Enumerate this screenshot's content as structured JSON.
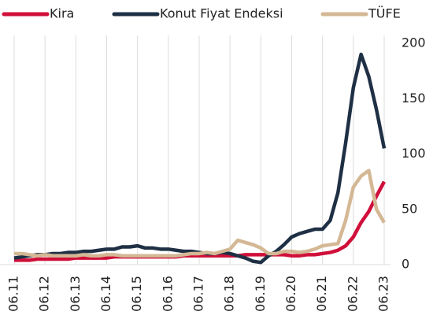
{
  "chart_data": {
    "type": "line",
    "categories": [
      "06.11",
      null,
      null,
      null,
      "06.12",
      null,
      null,
      null,
      "06.13",
      null,
      null,
      null,
      "06.14",
      null,
      null,
      null,
      "06.15",
      null,
      null,
      null,
      "06.16",
      null,
      null,
      null,
      "06.17",
      null,
      null,
      null,
      "06.18",
      null,
      null,
      null,
      "06.19",
      null,
      null,
      null,
      "06.20",
      null,
      null,
      null,
      "06.21",
      null,
      null,
      null,
      "06.22",
      null,
      null,
      null,
      "06.23"
    ],
    "series": [
      {
        "name": "Kira",
        "color": "#d0103a",
        "values": [
          4,
          4,
          4,
          5,
          5,
          5,
          5,
          5,
          6,
          6,
          6,
          6,
          6,
          7,
          7,
          7,
          7,
          7,
          7,
          7,
          7,
          7,
          8,
          8,
          8,
          8,
          8,
          8,
          8,
          8,
          9,
          9,
          9,
          9,
          9,
          9,
          8,
          8,
          9,
          9,
          10,
          11,
          13,
          17,
          25,
          38,
          48,
          62,
          75
        ]
      },
      {
        "name": "Konut Fiyat Endeksi",
        "color": "#1f3045",
        "values": [
          6,
          7,
          8,
          9,
          9,
          10,
          10,
          11,
          11,
          12,
          12,
          13,
          14,
          14,
          16,
          16,
          17,
          15,
          15,
          14,
          14,
          13,
          12,
          12,
          11,
          10,
          10,
          11,
          10,
          8,
          6,
          3,
          2,
          8,
          12,
          18,
          25,
          28,
          30,
          32,
          32,
          40,
          65,
          110,
          160,
          190,
          170,
          140,
          105
        ]
      },
      {
        "name": "TÜFE",
        "color": "#d4b895",
        "values": [
          10,
          10,
          9,
          8,
          9,
          8,
          8,
          8,
          8,
          9,
          8,
          8,
          9,
          9,
          8,
          8,
          8,
          8,
          8,
          8,
          8,
          8,
          9,
          10,
          10,
          11,
          10,
          12,
          14,
          22,
          20,
          18,
          15,
          10,
          10,
          12,
          12,
          11,
          12,
          14,
          17,
          18,
          19,
          40,
          70,
          80,
          85,
          50,
          38
        ]
      }
    ],
    "ylim": [
      0,
      200
    ],
    "yticks": [
      0,
      50,
      100,
      150,
      200
    ],
    "grid": "x",
    "legend": "top"
  }
}
